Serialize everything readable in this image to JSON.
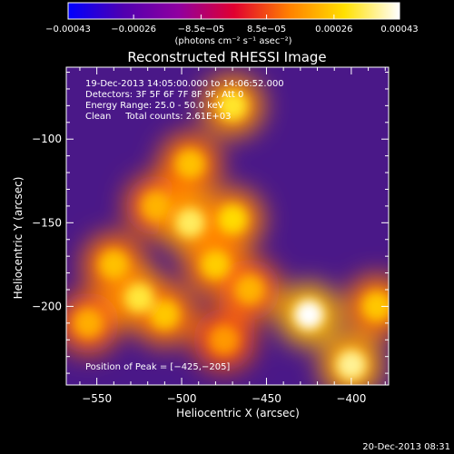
{
  "chart_data": {
    "type": "heatmap",
    "title": "Reconstructed RHESSI Image",
    "xlabel": "Heliocentric X (arcsec)",
    "ylabel": "Heliocentric Y (arcsec)",
    "xlim": [
      -568,
      -378
    ],
    "ylim": [
      -247,
      -57
    ],
    "x_ticks": [
      -550,
      -500,
      -450,
      -400
    ],
    "y_ticks": [
      -100,
      -150,
      -200
    ],
    "x_tick_labels": [
      "−550",
      "−500",
      "−450",
      "−400"
    ],
    "y_tick_labels": [
      "−100",
      "−150",
      "−200"
    ],
    "colorbar": {
      "range": [
        -0.00043,
        0.00043
      ],
      "ticks": [
        -0.00043,
        -0.00026,
        -8.5e-05,
        8.5e-05,
        0.00026,
        0.00043
      ],
      "tick_labels": [
        "−0.00043",
        "−0.00026",
        "−8.5e−05",
        "8.5e−05",
        "0.00026",
        "0.00043"
      ],
      "unit_label": "(photons cm⁻² s⁻¹ asec⁻²)",
      "colormap": [
        "#0000ff",
        "#5000b0",
        "#9000a0",
        "#e00030",
        "#ff8000",
        "#ffe000",
        "#ffffff"
      ]
    },
    "annotations": [
      "19-Dec-2013 14:05:00.000 to 14:06:52.000",
      "Detectors: 3F 5F 6F 7F 8F 9F, Att 0",
      "Energy Range: 25.0 - 50.0 keV",
      "Clean     Total counts: 2.61E+03"
    ],
    "peak_label": "Position of Peak = [−425,−205]",
    "peak": [
      -425,
      -205
    ],
    "bright_sources": [
      {
        "x": -470,
        "y": -80,
        "level": 0.00031
      },
      {
        "x": -495,
        "y": -115,
        "level": 0.00024
      },
      {
        "x": -515,
        "y": -140,
        "level": 0.00022
      },
      {
        "x": -495,
        "y": -150,
        "level": 0.00034
      },
      {
        "x": -470,
        "y": -148,
        "level": 0.00028
      },
      {
        "x": -480,
        "y": -175,
        "level": 0.00026
      },
      {
        "x": -460,
        "y": -190,
        "level": 0.00022
      },
      {
        "x": -540,
        "y": -175,
        "level": 0.00024
      },
      {
        "x": -525,
        "y": -195,
        "level": 0.00032
      },
      {
        "x": -510,
        "y": -205,
        "level": 0.00025
      },
      {
        "x": -555,
        "y": -210,
        "level": 0.00021
      },
      {
        "x": -475,
        "y": -220,
        "level": 0.00018
      },
      {
        "x": -425,
        "y": -205,
        "level": 0.00043
      },
      {
        "x": -400,
        "y": -235,
        "level": 0.00037
      },
      {
        "x": -385,
        "y": -200,
        "level": 0.00025
      }
    ]
  },
  "footer": {
    "timestamp": "20-Dec-2013 08:31"
  }
}
